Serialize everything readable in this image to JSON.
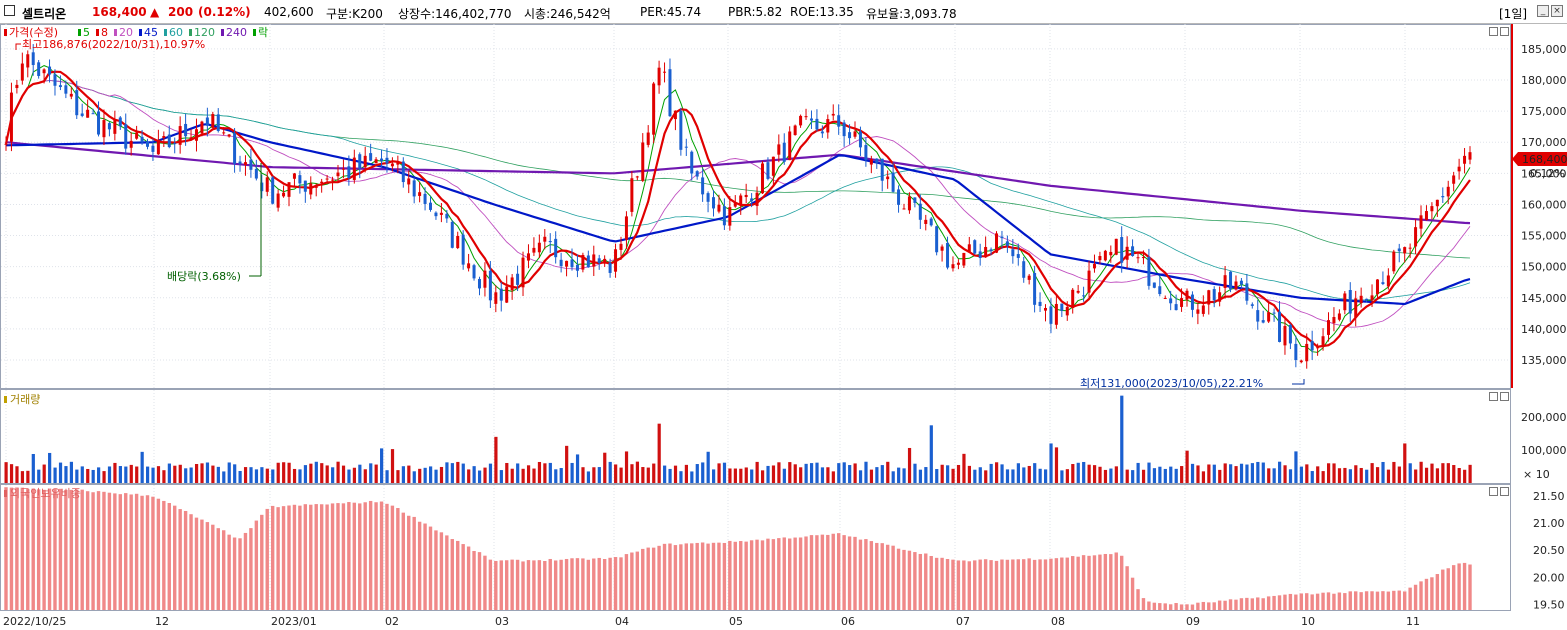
{
  "header": {
    "stock_name": "셀트리온",
    "price": "168,400",
    "change_arrow": "▲",
    "change": "200",
    "change_pct": "(0.12%)",
    "volume": "402,600",
    "market": "구분:K200",
    "listed_shares": "상장수:146,402,770",
    "market_cap": "시총:246,542억",
    "per": "PER:45.74",
    "pbr": "PBR:5.82",
    "roe": "ROE:13.35",
    "float": "유보율:3,093.78",
    "period": "[1일]"
  },
  "price_panel": {
    "legend": [
      {
        "label": "가격(수정)",
        "color": "#e00000"
      },
      {
        "label": "5",
        "color": "#00a000"
      },
      {
        "label": "8",
        "color": "#e00000"
      },
      {
        "label": "20",
        "color": "#c050c0"
      },
      {
        "label": "45",
        "color": "#0018c8"
      },
      {
        "label": "60",
        "color": "#20a0a0"
      },
      {
        "label": "120",
        "color": "#30a060"
      },
      {
        "label": "240",
        "color": "#7018b0"
      },
      {
        "label": "락",
        "color": "#00a000"
      }
    ],
    "high_note": "최고186,876(2022/10/31),10.97%",
    "low_note": "최저131,000(2023/10/05),22.21%",
    "dividend_note": "배당락(3.68%)",
    "current_price_label": "168,400",
    "current_change_label": "0.12%",
    "y_ticks": [
      "185,000",
      "180,000",
      "175,000",
      "170,000",
      "165,000",
      "160,000",
      "155,000",
      "150,000",
      "145,000",
      "140,000",
      "135,000"
    ]
  },
  "volume_panel": {
    "legend": "거래량",
    "y_ticks": [
      "200,000",
      "100,000"
    ],
    "unit": "× 10"
  },
  "foreign_panel": {
    "legend": "외국인보유비중",
    "y_ticks": [
      "21.50",
      "21.00",
      "20.50",
      "20.00",
      "19.50"
    ]
  },
  "x_axis": {
    "labels": [
      "2022/10/25",
      "12",
      "2023/01",
      "02",
      "03",
      "04",
      "05",
      "06",
      "07",
      "08",
      "09",
      "10",
      "11"
    ]
  },
  "chart_data": [
    {
      "type": "candlestick",
      "title": "가격(수정)",
      "ylim": [
        130500,
        189000
      ],
      "series_summary": {
        "high": 186876,
        "high_date": "2022/10/31",
        "low": 131000,
        "low_date": "2023/10/05",
        "last": 168400
      },
      "monthly_anchor_closes": [
        {
          "x": "2022/10/25",
          "value": 172000
        },
        {
          "x": "2022/10/31",
          "value": 184000
        },
        {
          "x": "2022/11",
          "value": 175000
        },
        {
          "x": "2022/12",
          "value": 168000
        },
        {
          "x": "2022/12 mid",
          "value": 174000
        },
        {
          "x": "2023/01",
          "value": 162000
        },
        {
          "x": "2023/02",
          "value": 167000
        },
        {
          "x": "2023/02 mid",
          "value": 160000
        },
        {
          "x": "2023/03",
          "value": 145000
        },
        {
          "x": "2023/03 mid",
          "value": 153000
        },
        {
          "x": "2023/04",
          "value": 150000
        },
        {
          "x": "2023/04 mid",
          "value": 182000
        },
        {
          "x": "2023/04 late",
          "value": 165000
        },
        {
          "x": "2023/05",
          "value": 158000
        },
        {
          "x": "2023/05 mid",
          "value": 172000
        },
        {
          "x": "2023/06",
          "value": 173000
        },
        {
          "x": "2023/06 mid",
          "value": 165000
        },
        {
          "x": "2023/07",
          "value": 150000
        },
        {
          "x": "2023/07 mid",
          "value": 155000
        },
        {
          "x": "2023/08",
          "value": 142000
        },
        {
          "x": "2023/08 mid",
          "value": 153000
        },
        {
          "x": "2023/09",
          "value": 144000
        },
        {
          "x": "2023/09 mid",
          "value": 147000
        },
        {
          "x": "2023/10",
          "value": 136000
        },
        {
          "x": "2023/10 mid",
          "value": 146000
        },
        {
          "x": "2023/11",
          "value": 152000
        },
        {
          "x": "2023/11 end",
          "value": 168400
        }
      ],
      "ma_anchors": {
        "ma45": [
          {
            "x": "2022/10/25",
            "value": 169500
          },
          {
            "x": "2022/12",
            "value": 170000
          },
          {
            "x": "2022/12 mid",
            "value": 173000
          },
          {
            "x": "2023/01",
            "value": 170000
          },
          {
            "x": "2023/02",
            "value": 166000
          },
          {
            "x": "2023/03",
            "value": 160000
          },
          {
            "x": "2023/04",
            "value": 154000
          },
          {
            "x": "2023/05",
            "value": 158000
          },
          {
            "x": "2023/06",
            "value": 168000
          },
          {
            "x": "2023/07",
            "value": 164000
          },
          {
            "x": "2023/08",
            "value": 152000
          },
          {
            "x": "2023/09",
            "value": 148000
          },
          {
            "x": "2023/10",
            "value": 145000
          },
          {
            "x": "2023/11",
            "value": 144000
          },
          {
            "x": "2023/11 end",
            "value": 148000
          }
        ],
        "ma240": [
          {
            "x": "2022/10/25",
            "value": 170000
          },
          {
            "x": "2023/01",
            "value": 166000
          },
          {
            "x": "2023/04",
            "value": 165000
          },
          {
            "x": "2023/06",
            "value": 168000
          },
          {
            "x": "2023/08",
            "value": 163000
          },
          {
            "x": "2023/10",
            "value": 159000
          },
          {
            "x": "2023/11 end",
            "value": 157000
          }
        ]
      }
    },
    {
      "type": "bar",
      "title": "거래량",
      "ylim": [
        0,
        270000
      ],
      "unit": "× 10",
      "peaks": [
        {
          "x": "2023/06 late",
          "value": 175000
        },
        {
          "x": "2023/08 mid",
          "value": 265000
        },
        {
          "x": "2023/08 early",
          "value": 120000
        },
        {
          "x": "2023/04 mid",
          "value": 130000
        },
        {
          "x": "2023/03",
          "value": 140000
        },
        {
          "x": "2023/11",
          "value": 120000
        }
      ]
    },
    {
      "type": "bar",
      "title": "외국인보유비중",
      "ylim": [
        19.4,
        21.7
      ],
      "anchors": [
        {
          "x": "2022/10/25",
          "value": 21.65
        },
        {
          "x": "2022/11",
          "value": 21.6
        },
        {
          "x": "2022/12",
          "value": 21.5
        },
        {
          "x": "2022/12 late",
          "value": 20.7
        },
        {
          "x": "2023/01",
          "value": 21.3
        },
        {
          "x": "2023/02",
          "value": 21.4
        },
        {
          "x": "2023/03",
          "value": 20.3
        },
        {
          "x": "2023/04",
          "value": 20.35
        },
        {
          "x": "2023/04 mid",
          "value": 20.6
        },
        {
          "x": "2023/05",
          "value": 20.65
        },
        {
          "x": "2023/06",
          "value": 20.8
        },
        {
          "x": "2023/07",
          "value": 20.3
        },
        {
          "x": "2023/08",
          "value": 20.35
        },
        {
          "x": "2023/08 mid",
          "value": 20.45
        },
        {
          "x": "2023/08 late",
          "value": 19.55
        },
        {
          "x": "2023/09",
          "value": 19.5
        },
        {
          "x": "2023/10",
          "value": 19.7
        },
        {
          "x": "2023/11",
          "value": 19.75
        },
        {
          "x": "2023/11 late",
          "value": 20.25
        }
      ]
    }
  ]
}
